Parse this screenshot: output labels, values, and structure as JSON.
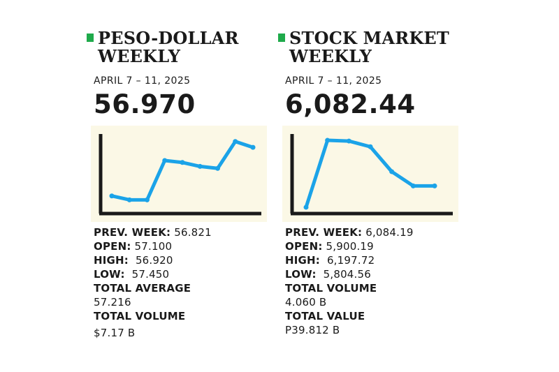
{
  "colors": {
    "accent_green": "#1faa4b",
    "line_blue": "#1ba3e8",
    "axis_black": "#1a1a1a",
    "chart_bg": "#fbf8e6"
  },
  "peso": {
    "title_line1": "PESO-DOLLAR",
    "title_line2": "WEEKLY",
    "date_range": "APRIL 7 – 11, 2025",
    "big_value": "56.970",
    "stats": {
      "prev_week_label": "PREV. WEEK:",
      "prev_week_value": "56.821",
      "open_label": "OPEN:",
      "open_value": "57.100",
      "high_label": "HIGH:",
      "high_value": "56.920",
      "low_label": "LOW:",
      "low_value": "57.450",
      "total_average_label": "TOTAL AVERAGE",
      "total_average_value": "57.216",
      "total_volume_label": "TOTAL VOLUME",
      "total_volume_value": "$7.17 B"
    }
  },
  "stock": {
    "title_line1": "STOCK MARKET",
    "title_line2": "WEEKLY",
    "date_range": "APRIL 7 – 11, 2025",
    "big_value": "6,082.44",
    "stats": {
      "prev_week_label": "PREV. WEEK:",
      "prev_week_value": "6,084.19",
      "open_label": "OPEN:",
      "open_value": "5,900.19",
      "high_label": "HIGH:",
      "high_value": "6,197.72",
      "low_label": "LOW:",
      "low_value": "5,804.56",
      "total_volume_label": "TOTAL VOLUME",
      "total_volume_value": "4.060 B",
      "total_value_label": "TOTAL VALUE",
      "total_value_value": "P39.812 B"
    }
  },
  "chart_data": [
    {
      "type": "line",
      "title": "",
      "xlabel": "",
      "ylabel": "",
      "grid": false,
      "values": [
        12,
        6,
        6,
        66,
        63,
        57,
        54,
        95,
        86
      ],
      "ylim": [
        0,
        100
      ]
    },
    {
      "type": "line",
      "title": "",
      "xlabel": "",
      "ylabel": "",
      "grid": false,
      "values": [
        3,
        97,
        96,
        88,
        53,
        33,
        33
      ],
      "ylim": [
        0,
        100
      ]
    }
  ]
}
